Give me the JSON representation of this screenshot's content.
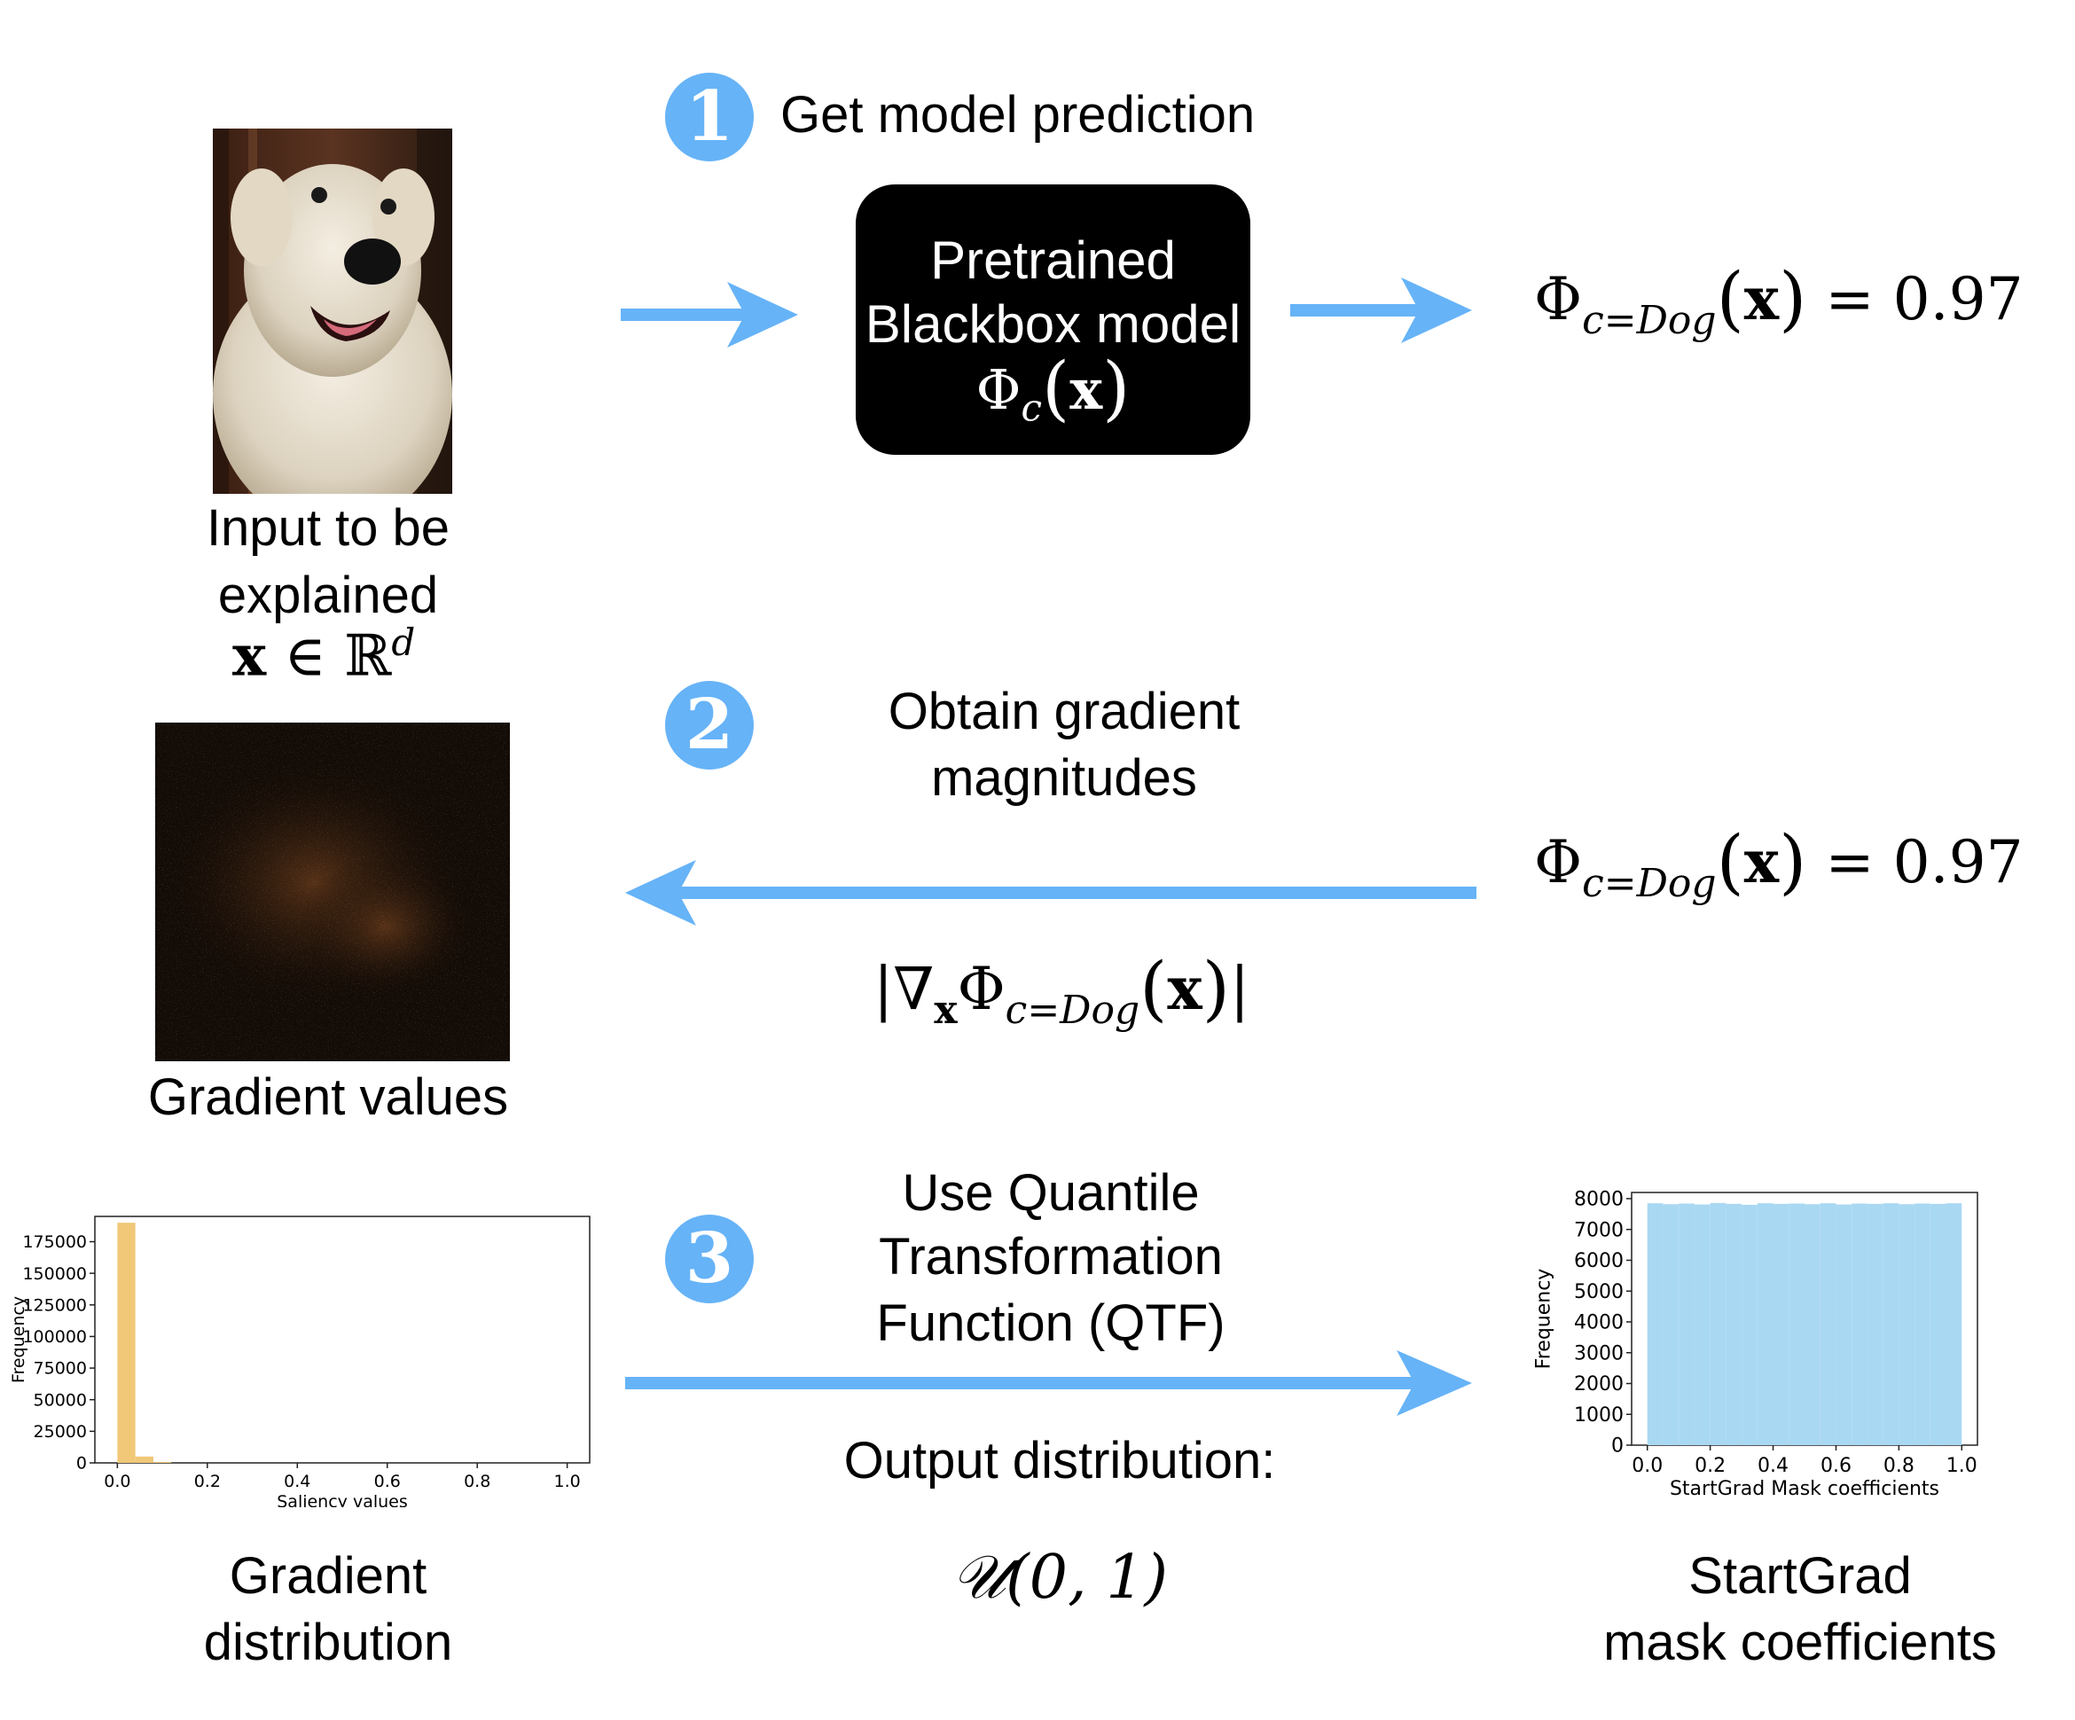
{
  "steps": [
    {
      "number": "1",
      "title": "Get model prediction"
    },
    {
      "number": "2",
      "title_line1": "Obtain gradient",
      "title_line2": "magnitudes"
    },
    {
      "number": "3",
      "title_line1": "Use Quantile",
      "title_line2": "Transformation",
      "title_line3": "Function (QTF)"
    }
  ],
  "model_box": {
    "line1": "Pretrained",
    "line2": "Blackbox model",
    "phi": "Φ",
    "sub": "c",
    "arg": "x"
  },
  "prediction": {
    "phi": "Φ",
    "sub": "c=Dog",
    "arg": "x",
    "value": "= 0.97"
  },
  "gradient_expr": {
    "nabla": "|∇",
    "sub_x": "x",
    "phi": "Φ",
    "sub": "c=Dog",
    "arg": "x",
    "close": "|"
  },
  "input_caption": {
    "line1": "Input to be",
    "line2": "explained",
    "math_x": "x",
    "math_in": "∈ ℝ",
    "math_sup": "d"
  },
  "gradient_caption": "Gradient values",
  "output_caption": {
    "line1": "Output distribution:",
    "formula": "𝒰(0, 1)"
  },
  "gradient_dist_caption": {
    "line1": "Gradient",
    "line2": "distribution"
  },
  "mask_caption": {
    "line1": "StartGrad",
    "line2": "mask coefficients"
  },
  "colors": {
    "arrow": "#66b3f7",
    "badge": "#66b3f7",
    "gradient_hist": "#f0c878",
    "mask_hist": "#a9d8f2"
  },
  "chart_data": [
    {
      "type": "bar",
      "xlabel": "Saliency values",
      "ylabel": "Frequency",
      "xlim": [
        -0.05,
        1.05
      ],
      "ylim": [
        0,
        195000
      ],
      "xticks": [
        "0.0",
        "0.2",
        "0.4",
        "0.6",
        "0.8",
        "1.0"
      ],
      "yticks": [
        "0",
        "25000",
        "50000",
        "75000",
        "100000",
        "125000",
        "150000",
        "175000"
      ],
      "bins": [
        {
          "x0": 0.0,
          "x1": 0.04,
          "value": 190000
        },
        {
          "x0": 0.04,
          "x1": 0.08,
          "value": 5000
        },
        {
          "x0": 0.08,
          "x1": 0.12,
          "value": 800
        }
      ]
    },
    {
      "type": "bar",
      "xlabel": "StartGrad Mask coefficients",
      "ylabel": "Frequency",
      "xlim": [
        -0.05,
        1.05
      ],
      "ylim": [
        0,
        8200
      ],
      "xticks": [
        "0.0",
        "0.2",
        "0.4",
        "0.6",
        "0.8",
        "1.0"
      ],
      "yticks": [
        "0",
        "1000",
        "2000",
        "3000",
        "4000",
        "5000",
        "6000",
        "7000",
        "8000"
      ],
      "bins": [
        {
          "x0": 0.0,
          "x1": 0.05,
          "value": 7850
        },
        {
          "x0": 0.05,
          "x1": 0.1,
          "value": 7820
        },
        {
          "x0": 0.1,
          "x1": 0.15,
          "value": 7840
        },
        {
          "x0": 0.15,
          "x1": 0.2,
          "value": 7810
        },
        {
          "x0": 0.2,
          "x1": 0.25,
          "value": 7860
        },
        {
          "x0": 0.25,
          "x1": 0.3,
          "value": 7830
        },
        {
          "x0": 0.3,
          "x1": 0.35,
          "value": 7800
        },
        {
          "x0": 0.35,
          "x1": 0.4,
          "value": 7850
        },
        {
          "x0": 0.4,
          "x1": 0.45,
          "value": 7830
        },
        {
          "x0": 0.45,
          "x1": 0.5,
          "value": 7840
        },
        {
          "x0": 0.5,
          "x1": 0.55,
          "value": 7820
        },
        {
          "x0": 0.55,
          "x1": 0.6,
          "value": 7850
        },
        {
          "x0": 0.6,
          "x1": 0.65,
          "value": 7810
        },
        {
          "x0": 0.65,
          "x1": 0.7,
          "value": 7840
        },
        {
          "x0": 0.7,
          "x1": 0.75,
          "value": 7830
        },
        {
          "x0": 0.75,
          "x1": 0.8,
          "value": 7850
        },
        {
          "x0": 0.8,
          "x1": 0.85,
          "value": 7820
        },
        {
          "x0": 0.85,
          "x1": 0.9,
          "value": 7840
        },
        {
          "x0": 0.9,
          "x1": 0.95,
          "value": 7830
        },
        {
          "x0": 0.95,
          "x1": 1.0,
          "value": 7850
        }
      ]
    }
  ]
}
